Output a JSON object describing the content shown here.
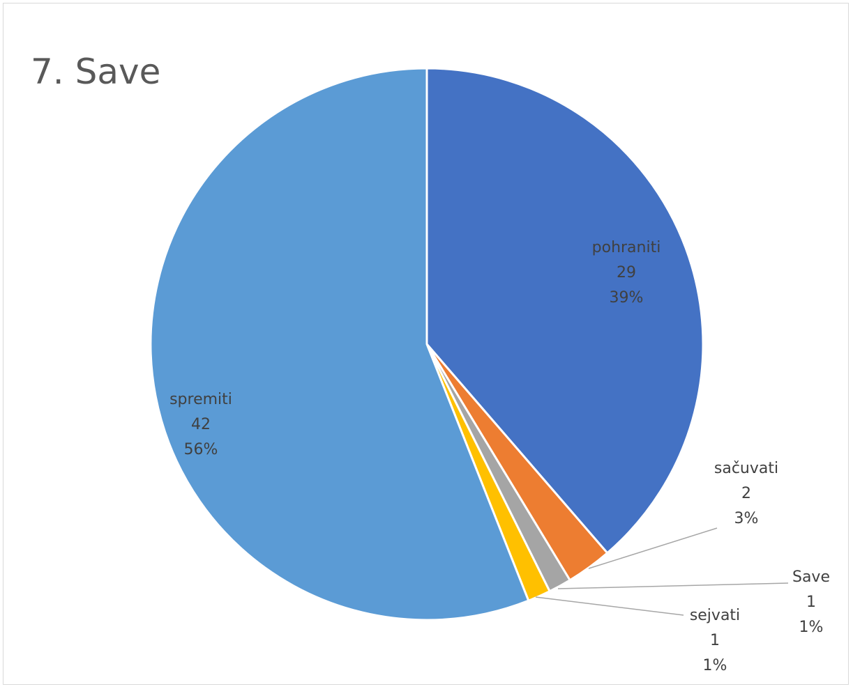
{
  "chart_data": {
    "type": "pie",
    "title": "7. Save",
    "slices": [
      {
        "label": "pohraniti",
        "value": 29,
        "percent": "39%",
        "color": "#4472C4"
      },
      {
        "label": "sačuvati",
        "value": 2,
        "percent": "3%",
        "color": "#ED7D31"
      },
      {
        "label": "Save",
        "value": 1,
        "percent": "1%",
        "color": "#A5A5A5"
      },
      {
        "label": "sejvati",
        "value": 1,
        "percent": "1%",
        "color": "#FFC000"
      },
      {
        "label": "spremiti",
        "value": 42,
        "percent": "56%",
        "color": "#5B9BD5"
      }
    ],
    "legend": "none",
    "data_labels": "label, value, percent"
  }
}
